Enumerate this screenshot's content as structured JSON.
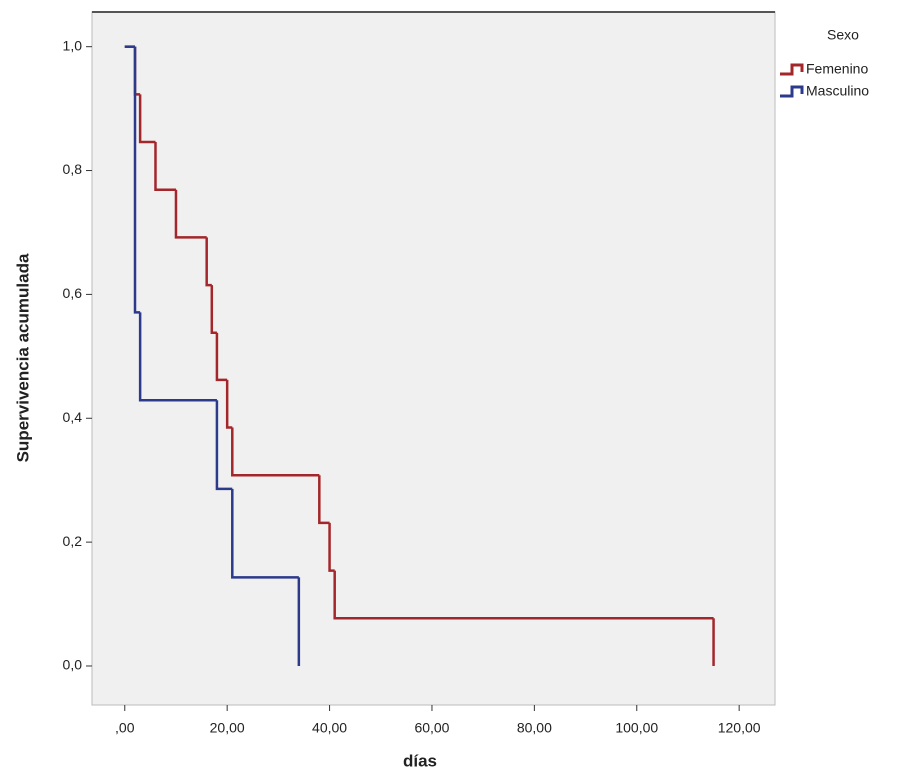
{
  "chart_data": {
    "type": "step",
    "x_label": "días",
    "y_label": "Supervivencia acumulada",
    "legend_title": "Sexo",
    "legend": "top-right",
    "xlim": [
      -6.4,
      127
    ],
    "ylim": [
      -0.063,
      1.056
    ],
    "xticks": [
      {
        "value": 0,
        "label": ",00"
      },
      {
        "value": 20,
        "label": "20,00"
      },
      {
        "value": 40,
        "label": "40,00"
      },
      {
        "value": 60,
        "label": "60,00"
      },
      {
        "value": 80,
        "label": "80,00"
      },
      {
        "value": 100,
        "label": "100,00"
      },
      {
        "value": 120,
        "label": "120,00"
      }
    ],
    "yticks": [
      {
        "value": 0,
        "label": "0,0"
      },
      {
        "value": 0.2,
        "label": "0,2"
      },
      {
        "value": 0.4,
        "label": "0,4"
      },
      {
        "value": 0.6,
        "label": "0,6"
      },
      {
        "value": 0.8,
        "label": "0,8"
      },
      {
        "value": 1,
        "label": "1,0"
      }
    ],
    "series": [
      {
        "name": "Femenino",
        "color": "#a3262a",
        "x": [
          0,
          2,
          3,
          6,
          10,
          16,
          17,
          18,
          20,
          21,
          38,
          40,
          41,
          115
        ],
        "values": [
          1,
          0.923,
          0.846,
          0.769,
          0.692,
          0.615,
          0.538,
          0.462,
          0.385,
          0.308,
          0.231,
          0.154,
          0.077,
          0
        ]
      },
      {
        "name": "Masculino",
        "color": "#2c3a8c",
        "x": [
          0,
          2,
          3,
          18,
          21,
          34
        ],
        "values": [
          1,
          0.571,
          0.429,
          0.286,
          0.143,
          0
        ]
      }
    ]
  }
}
